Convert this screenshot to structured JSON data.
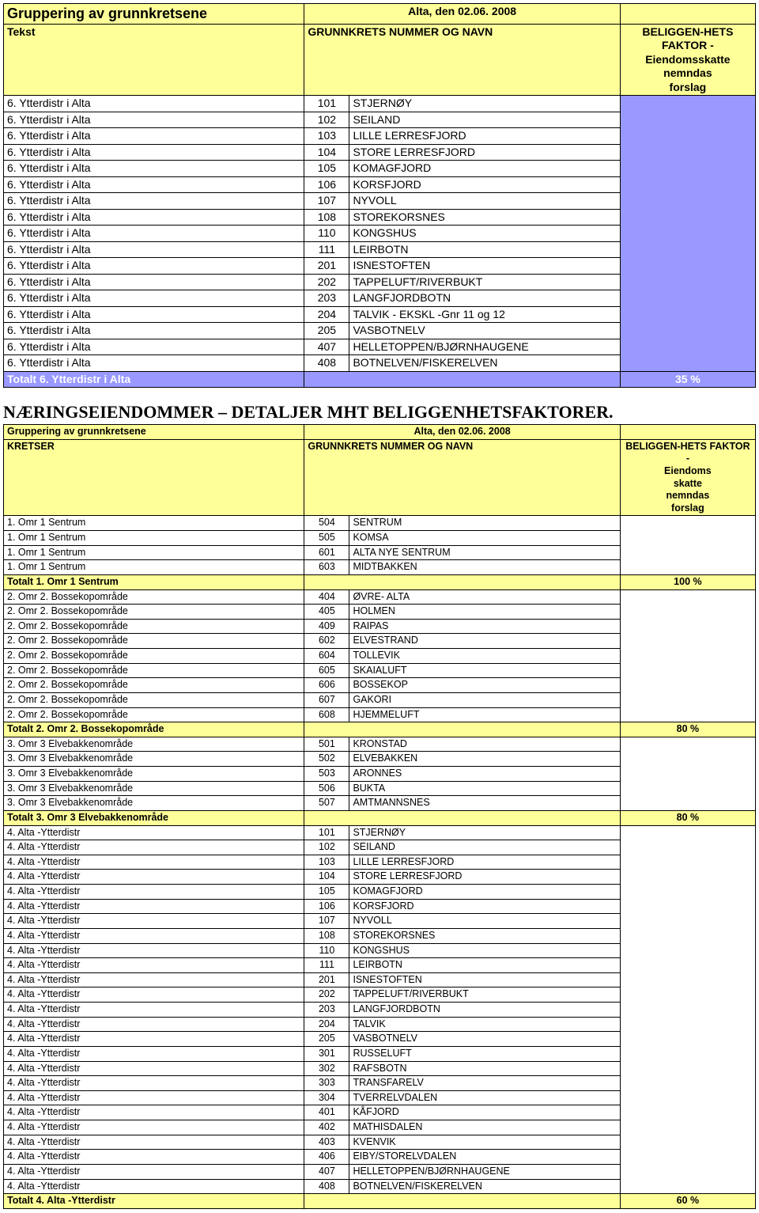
{
  "colors": {
    "header_bg": "#ffff99",
    "purple_bg": "#9999ff",
    "border": "#000000",
    "text": "#000000",
    "total_text_on_purple": "#ffffff"
  },
  "table1": {
    "title_left": "Gruppering av grunnkretsene",
    "title_date": "Alta, den 02.06. 2008",
    "header_tekst": "Tekst",
    "header_grunnkrets": "GRUNNKRETS NUMMER OG NAVN",
    "header_factor": "BELIGGEN-HETS FAKTOR - Eiendomsskatte nemndas forslag",
    "rows": [
      {
        "tekst": "6. Ytterdistr i Alta",
        "num": "101",
        "name": "STJERNØY"
      },
      {
        "tekst": "6. Ytterdistr i Alta",
        "num": "102",
        "name": "SEILAND"
      },
      {
        "tekst": "6. Ytterdistr i Alta",
        "num": "103",
        "name": "LILLE LERRESFJORD"
      },
      {
        "tekst": "6. Ytterdistr i Alta",
        "num": "104",
        "name": "STORE LERRESFJORD"
      },
      {
        "tekst": "6. Ytterdistr i Alta",
        "num": "105",
        "name": "KOMAGFJORD"
      },
      {
        "tekst": "6. Ytterdistr i Alta",
        "num": "106",
        "name": "KORSFJORD"
      },
      {
        "tekst": "6. Ytterdistr i Alta",
        "num": "107",
        "name": "NYVOLL"
      },
      {
        "tekst": "6. Ytterdistr i Alta",
        "num": "108",
        "name": "STOREKORSNES"
      },
      {
        "tekst": "6. Ytterdistr i Alta",
        "num": "110",
        "name": "KONGSHUS"
      },
      {
        "tekst": "6. Ytterdistr i Alta",
        "num": "111",
        "name": "LEIRBOTN"
      },
      {
        "tekst": "6. Ytterdistr i Alta",
        "num": "201",
        "name": "ISNESTOFTEN"
      },
      {
        "tekst": "6. Ytterdistr i Alta",
        "num": "202",
        "name": "TAPPELUFT/RIVERBUKT"
      },
      {
        "tekst": "6. Ytterdistr i Alta",
        "num": "203",
        "name": "LANGFJORDBOTN"
      },
      {
        "tekst": "6. Ytterdistr i Alta",
        "num": "204",
        "name": "TALVIK - EKSKL -Gnr 11 og 12"
      },
      {
        "tekst": "6. Ytterdistr i Alta",
        "num": "205",
        "name": "VASBOTNELV"
      },
      {
        "tekst": "6. Ytterdistr i Alta",
        "num": "407",
        "name": "HELLETOPPEN/BJØRNHAUGENE"
      },
      {
        "tekst": "6. Ytterdistr i Alta",
        "num": "408",
        "name": "BOTNELVEN/FISKERELVEN"
      }
    ],
    "total_label": "Totalt 6. Ytterdistr i Alta",
    "total_factor": "35 %"
  },
  "section_heading": "NÆRINGSEIENDOMMER – DETALJER MHT BELIGGENHETSFAKTORER.",
  "table2": {
    "title_left": "Gruppering av grunnkretsene",
    "title_date": "Alta, den 02.06. 2008",
    "header_tekst": "KRETSER",
    "header_grunnkrets": "GRUNNKRETS NUMMER OG NAVN",
    "header_factor": "BELIGGEN-HETS FAKTOR - Eiendoms skatte nemndas forslag",
    "groups": [
      {
        "rows": [
          {
            "tekst": "1. Omr 1 Sentrum",
            "num": "504",
            "name": "SENTRUM"
          },
          {
            "tekst": "1. Omr 1 Sentrum",
            "num": "505",
            "name": "KOMSA"
          },
          {
            "tekst": "1. Omr 1 Sentrum",
            "num": "601",
            "name": "ALTA NYE SENTRUM"
          },
          {
            "tekst": "1. Omr 1 Sentrum",
            "num": "603",
            "name": "MIDTBAKKEN"
          }
        ],
        "total_label": "Totalt 1. Omr 1 Sentrum",
        "total_factor": "100 %"
      },
      {
        "rows": [
          {
            "tekst": "2. Omr 2. Bossekopområde",
            "num": "404",
            "name": "ØVRE- ALTA"
          },
          {
            "tekst": "2. Omr 2. Bossekopområde",
            "num": "405",
            "name": "HOLMEN"
          },
          {
            "tekst": "2. Omr 2. Bossekopområde",
            "num": "409",
            "name": "RAIPAS"
          },
          {
            "tekst": "2. Omr 2. Bossekopområde",
            "num": "602",
            "name": "ELVESTRAND"
          },
          {
            "tekst": "2. Omr 2. Bossekopområde",
            "num": "604",
            "name": "TOLLEVIK"
          },
          {
            "tekst": "2. Omr 2. Bossekopområde",
            "num": "605",
            "name": "SKAIALUFT"
          },
          {
            "tekst": "2. Omr 2. Bossekopområde",
            "num": "606",
            "name": "BOSSEKOP"
          },
          {
            "tekst": "2. Omr 2. Bossekopområde",
            "num": "607",
            "name": "GAKORI"
          },
          {
            "tekst": "2. Omr 2. Bossekopområde",
            "num": "608",
            "name": "HJEMMELUFT"
          }
        ],
        "total_label": "Totalt 2. Omr 2. Bossekopområde",
        "total_factor": "80 %"
      },
      {
        "rows": [
          {
            "tekst": "3. Omr 3 Elvebakkenområde",
            "num": "501",
            "name": "KRONSTAD"
          },
          {
            "tekst": "3. Omr 3 Elvebakkenområde",
            "num": "502",
            "name": "ELVEBAKKEN"
          },
          {
            "tekst": "3. Omr 3 Elvebakkenområde",
            "num": "503",
            "name": "ARONNES"
          },
          {
            "tekst": "3. Omr 3 Elvebakkenområde",
            "num": "506",
            "name": "BUKTA"
          },
          {
            "tekst": "3. Omr 3 Elvebakkenområde",
            "num": "507",
            "name": "AMTMANNSNES"
          }
        ],
        "total_label": "Totalt 3. Omr 3 Elvebakkenområde",
        "total_factor": "80 %"
      },
      {
        "rows": [
          {
            "tekst": "4. Alta -Ytterdistr",
            "num": "101",
            "name": "STJERNØY"
          },
          {
            "tekst": "4. Alta -Ytterdistr",
            "num": "102",
            "name": "SEILAND"
          },
          {
            "tekst": "4. Alta -Ytterdistr",
            "num": "103",
            "name": "LILLE LERRESFJORD"
          },
          {
            "tekst": "4. Alta -Ytterdistr",
            "num": "104",
            "name": "STORE LERRESFJORD"
          },
          {
            "tekst": "4. Alta -Ytterdistr",
            "num": "105",
            "name": "KOMAGFJORD"
          },
          {
            "tekst": "4. Alta -Ytterdistr",
            "num": "106",
            "name": "KORSFJORD"
          },
          {
            "tekst": "4. Alta -Ytterdistr",
            "num": "107",
            "name": "NYVOLL"
          },
          {
            "tekst": "4. Alta -Ytterdistr",
            "num": "108",
            "name": "STOREKORSNES"
          },
          {
            "tekst": "4. Alta -Ytterdistr",
            "num": "110",
            "name": "KONGSHUS"
          },
          {
            "tekst": "4. Alta -Ytterdistr",
            "num": "111",
            "name": "LEIRBOTN"
          },
          {
            "tekst": "4. Alta -Ytterdistr",
            "num": "201",
            "name": "ISNESTOFTEN"
          },
          {
            "tekst": "4. Alta -Ytterdistr",
            "num": "202",
            "name": "TAPPELUFT/RIVERBUKT"
          },
          {
            "tekst": "4. Alta -Ytterdistr",
            "num": "203",
            "name": "LANGFJORDBOTN"
          },
          {
            "tekst": "4. Alta -Ytterdistr",
            "num": "204",
            "name": "TALVIK"
          },
          {
            "tekst": "4. Alta -Ytterdistr",
            "num": "205",
            "name": "VASBOTNELV"
          },
          {
            "tekst": "4. Alta -Ytterdistr",
            "num": "301",
            "name": "RUSSELUFT"
          },
          {
            "tekst": "4. Alta -Ytterdistr",
            "num": "302",
            "name": "RAFSBOTN"
          },
          {
            "tekst": "4. Alta -Ytterdistr",
            "num": "303",
            "name": "TRANSFARELV"
          },
          {
            "tekst": "4. Alta -Ytterdistr",
            "num": "304",
            "name": "TVERRELVDALEN"
          },
          {
            "tekst": "4. Alta -Ytterdistr",
            "num": "401",
            "name": "KÅFJORD"
          },
          {
            "tekst": "4. Alta -Ytterdistr",
            "num": "402",
            "name": "MATHISDALEN"
          },
          {
            "tekst": "4. Alta -Ytterdistr",
            "num": "403",
            "name": "KVENVIK"
          },
          {
            "tekst": "4. Alta -Ytterdistr",
            "num": "406",
            "name": "EIBY/STORELVDALEN"
          },
          {
            "tekst": "4. Alta -Ytterdistr",
            "num": "407",
            "name": "HELLETOPPEN/BJØRNHAUGENE"
          },
          {
            "tekst": "4. Alta -Ytterdistr",
            "num": "408",
            "name": "BOTNELVEN/FISKERELVEN"
          }
        ],
        "total_label": "Totalt 4. Alta -Ytterdistr",
        "total_factor": "60 %"
      }
    ]
  }
}
